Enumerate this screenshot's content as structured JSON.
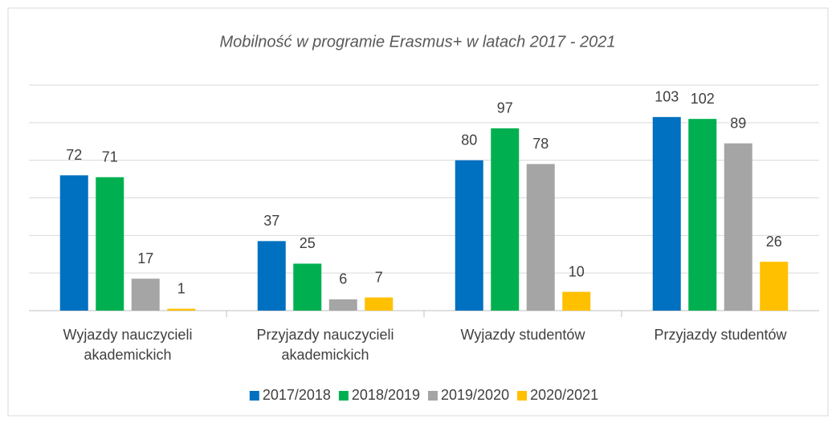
{
  "chart_data": {
    "type": "bar",
    "title": "Mobilność w programie Erasmus+ w latach 2017 - 2021",
    "categories": [
      "Wyjazdy nauczycieli akademickich",
      "Przyjazdy nauczycieli akademickich",
      "Wyjazdy studentów",
      "Przyjazdy studentów"
    ],
    "series": [
      {
        "name": "2017/2018",
        "color": "#0070c0",
        "values": [
          72,
          37,
          80,
          103
        ]
      },
      {
        "name": "2018/2019",
        "color": "#00b050",
        "values": [
          71,
          25,
          97,
          102
        ]
      },
      {
        "name": "2019/2020",
        "color": "#a5a5a5",
        "values": [
          17,
          6,
          78,
          89
        ]
      },
      {
        "name": "2020/2021",
        "color": "#ffc000",
        "values": [
          1,
          7,
          10,
          26
        ]
      }
    ],
    "ylim": [
      0,
      120
    ],
    "yticks": [
      0,
      20,
      40,
      60,
      80,
      100,
      120
    ],
    "grid": true,
    "legend": "bottom"
  }
}
